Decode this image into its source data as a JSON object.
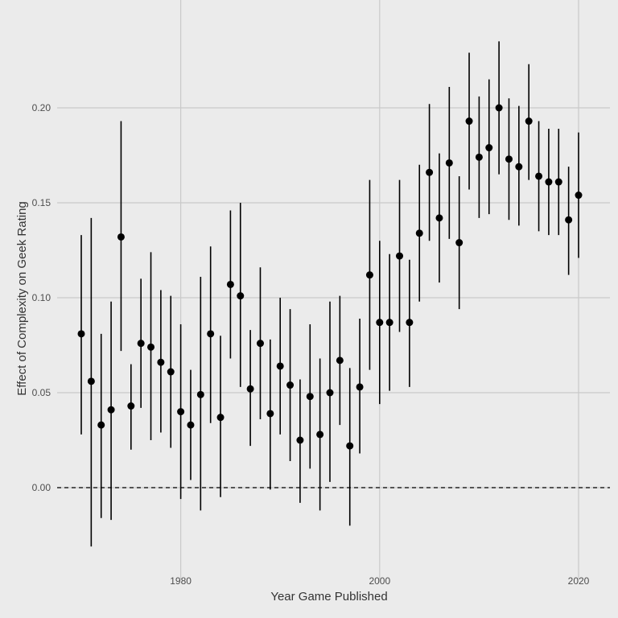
{
  "chart_data": {
    "type": "scatter",
    "title": "",
    "xlabel": "Year Game Published",
    "ylabel": "Effect of Complexity on Geek Rating",
    "xlim": [
      1968.8,
      2021.3
    ],
    "ylim": [
      -0.0365,
      0.2435
    ],
    "x_ticks": [
      1980,
      2000,
      2020
    ],
    "x_tick_labels": [
      "1980",
      "2000",
      "2020"
    ],
    "y_ticks": [
      0.0,
      0.05,
      0.1,
      0.15,
      0.2
    ],
    "y_tick_labels": [
      "0.00",
      "0.05",
      "0.10",
      "0.15",
      "0.20"
    ],
    "grid": true,
    "reference_line": {
      "y": 0.0,
      "style": "dashed"
    },
    "points": [
      {
        "x": 1970,
        "y": 0.081,
        "lo": 0.028,
        "hi": 0.133
      },
      {
        "x": 1971,
        "y": 0.056,
        "lo": -0.031,
        "hi": 0.142
      },
      {
        "x": 1972,
        "y": 0.033,
        "lo": -0.016,
        "hi": 0.081
      },
      {
        "x": 1973,
        "y": 0.041,
        "lo": -0.017,
        "hi": 0.098
      },
      {
        "x": 1974,
        "y": 0.132,
        "lo": 0.072,
        "hi": 0.193
      },
      {
        "x": 1975,
        "y": 0.043,
        "lo": 0.02,
        "hi": 0.065
      },
      {
        "x": 1976,
        "y": 0.076,
        "lo": 0.042,
        "hi": 0.11
      },
      {
        "x": 1977,
        "y": 0.074,
        "lo": 0.025,
        "hi": 0.124
      },
      {
        "x": 1978,
        "y": 0.066,
        "lo": 0.029,
        "hi": 0.104
      },
      {
        "x": 1979,
        "y": 0.061,
        "lo": 0.021,
        "hi": 0.101
      },
      {
        "x": 1980,
        "y": 0.04,
        "lo": -0.006,
        "hi": 0.086
      },
      {
        "x": 1981,
        "y": 0.033,
        "lo": 0.004,
        "hi": 0.062
      },
      {
        "x": 1982,
        "y": 0.049,
        "lo": -0.012,
        "hi": 0.111
      },
      {
        "x": 1983,
        "y": 0.081,
        "lo": 0.034,
        "hi": 0.127
      },
      {
        "x": 1984,
        "y": 0.037,
        "lo": -0.005,
        "hi": 0.08
      },
      {
        "x": 1985,
        "y": 0.107,
        "lo": 0.068,
        "hi": 0.146
      },
      {
        "x": 1986,
        "y": 0.101,
        "lo": 0.053,
        "hi": 0.15
      },
      {
        "x": 1987,
        "y": 0.052,
        "lo": 0.022,
        "hi": 0.083
      },
      {
        "x": 1988,
        "y": 0.076,
        "lo": 0.036,
        "hi": 0.116
      },
      {
        "x": 1989,
        "y": 0.039,
        "lo": -0.001,
        "hi": 0.078
      },
      {
        "x": 1990,
        "y": 0.064,
        "lo": 0.028,
        "hi": 0.1
      },
      {
        "x": 1991,
        "y": 0.054,
        "lo": 0.014,
        "hi": 0.094
      },
      {
        "x": 1992,
        "y": 0.025,
        "lo": -0.008,
        "hi": 0.057
      },
      {
        "x": 1993,
        "y": 0.048,
        "lo": 0.01,
        "hi": 0.086
      },
      {
        "x": 1994,
        "y": 0.028,
        "lo": -0.012,
        "hi": 0.068
      },
      {
        "x": 1995,
        "y": 0.05,
        "lo": 0.003,
        "hi": 0.098
      },
      {
        "x": 1996,
        "y": 0.067,
        "lo": 0.033,
        "hi": 0.101
      },
      {
        "x": 1997,
        "y": 0.022,
        "lo": -0.02,
        "hi": 0.063
      },
      {
        "x": 1998,
        "y": 0.053,
        "lo": 0.018,
        "hi": 0.089
      },
      {
        "x": 1999,
        "y": 0.112,
        "lo": 0.062,
        "hi": 0.162
      },
      {
        "x": 2000,
        "y": 0.087,
        "lo": 0.044,
        "hi": 0.13
      },
      {
        "x": 2001,
        "y": 0.087,
        "lo": 0.051,
        "hi": 0.123
      },
      {
        "x": 2002,
        "y": 0.122,
        "lo": 0.082,
        "hi": 0.162
      },
      {
        "x": 2003,
        "y": 0.087,
        "lo": 0.053,
        "hi": 0.12
      },
      {
        "x": 2004,
        "y": 0.134,
        "lo": 0.098,
        "hi": 0.17
      },
      {
        "x": 2005,
        "y": 0.166,
        "lo": 0.13,
        "hi": 0.202
      },
      {
        "x": 2006,
        "y": 0.142,
        "lo": 0.108,
        "hi": 0.176
      },
      {
        "x": 2007,
        "y": 0.171,
        "lo": 0.131,
        "hi": 0.211
      },
      {
        "x": 2008,
        "y": 0.129,
        "lo": 0.094,
        "hi": 0.164
      },
      {
        "x": 2009,
        "y": 0.193,
        "lo": 0.157,
        "hi": 0.229
      },
      {
        "x": 2010,
        "y": 0.174,
        "lo": 0.142,
        "hi": 0.206
      },
      {
        "x": 2011,
        "y": 0.179,
        "lo": 0.144,
        "hi": 0.215
      },
      {
        "x": 2012,
        "y": 0.2,
        "lo": 0.165,
        "hi": 0.235
      },
      {
        "x": 2013,
        "y": 0.173,
        "lo": 0.141,
        "hi": 0.205
      },
      {
        "x": 2014,
        "y": 0.169,
        "lo": 0.138,
        "hi": 0.201
      },
      {
        "x": 2015,
        "y": 0.193,
        "lo": 0.162,
        "hi": 0.223
      },
      {
        "x": 2016,
        "y": 0.164,
        "lo": 0.135,
        "hi": 0.193
      },
      {
        "x": 2017,
        "y": 0.161,
        "lo": 0.133,
        "hi": 0.189
      },
      {
        "x": 2018,
        "y": 0.161,
        "lo": 0.133,
        "hi": 0.189
      },
      {
        "x": 2019,
        "y": 0.141,
        "lo": 0.112,
        "hi": 0.169
      },
      {
        "x": 2020,
        "y": 0.154,
        "lo": 0.121,
        "hi": 0.187
      }
    ]
  },
  "colors": {
    "panel_background": "#ebebeb",
    "grid": "#c9c9c9",
    "point": "#000000",
    "errorbar": "#000000",
    "reference_line": "#000000"
  }
}
